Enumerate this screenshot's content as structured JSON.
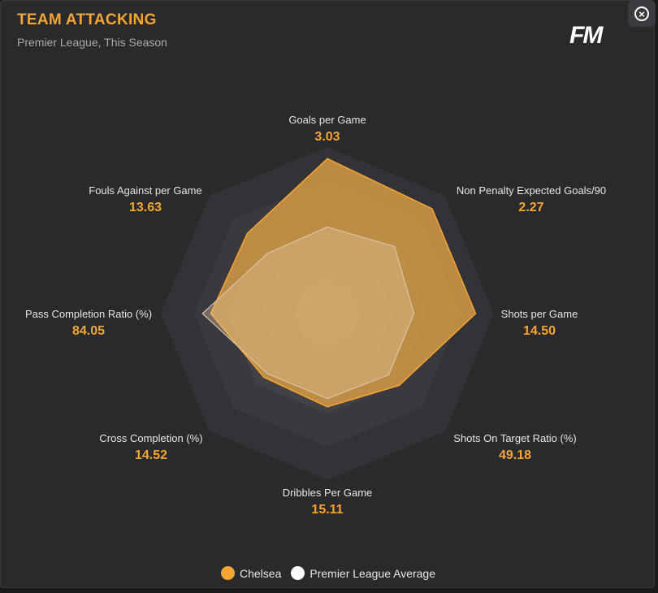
{
  "header": {
    "title": "TEAM ATTACKING",
    "subtitle": "Premier League, This Season",
    "logo_text": "FM",
    "close_icon": "close-icon"
  },
  "colors": {
    "accent": "#f5a531",
    "team_fill": "#c98a3a",
    "average_fill": "#cdb18f"
  },
  "chart_data": {
    "type": "radar",
    "title": "TEAM ATTACKING",
    "subtitle": "Premier League, This Season",
    "axes": [
      {
        "label": "Goals per Game",
        "value_text": "3.03"
      },
      {
        "label": "Non Penalty Expected Goals/90",
        "value_text": "2.27"
      },
      {
        "label": "Shots per Game",
        "value_text": "14.50"
      },
      {
        "label": "Shots On Target Ratio (%)",
        "value_text": "49.18"
      },
      {
        "label": "Dribbles Per Game",
        "value_text": "15.11"
      },
      {
        "label": "Cross Completion (%)",
        "value_text": "14.52"
      },
      {
        "label": "Pass Completion Ratio (%)",
        "value_text": "84.05"
      },
      {
        "label": "Fouls Against per Game",
        "value_text": "13.63"
      }
    ],
    "scale": [
      0,
      1
    ],
    "rings": 5,
    "series": [
      {
        "name": "Chelsea",
        "color": "#f5a531",
        "values": [
          0.93,
          0.89,
          0.89,
          0.61,
          0.56,
          0.54,
          0.7,
          0.68
        ]
      },
      {
        "name": "Premier League Average",
        "color": "#ffffff",
        "values": [
          0.52,
          0.57,
          0.52,
          0.52,
          0.51,
          0.51,
          0.75,
          0.51
        ]
      }
    ],
    "legend_position": "bottom"
  }
}
